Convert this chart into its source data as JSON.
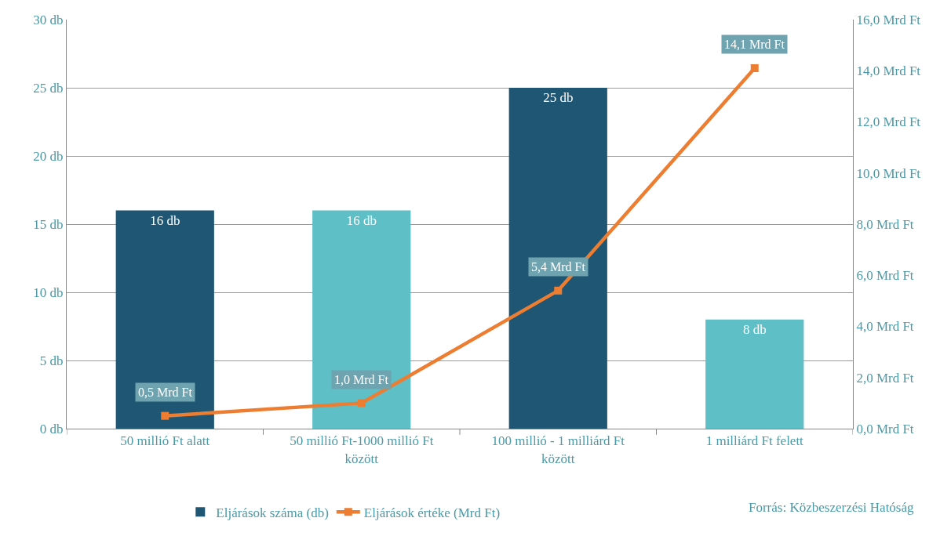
{
  "chart_data": {
    "type": "bar",
    "categories": [
      "50 millió Ft alatt",
      "50 millió Ft-1000 millió Ft között",
      "100 millió - 1 milliárd Ft között",
      "1 milliárd Ft felett"
    ],
    "series": [
      {
        "name": "Eljárások száma (db)",
        "colors": [
          "#1f5673",
          "#5fbfc6",
          "#1f5673",
          "#5fbfc6"
        ],
        "values": [
          16,
          16,
          25,
          8
        ],
        "value_labels": [
          "16 db",
          "16 db",
          "25 db",
          "8 db"
        ]
      },
      {
        "name": "Eljárások értéke (Mrd Ft)",
        "type": "line",
        "axis": "y2",
        "color": "#ed7d31",
        "marker": "square",
        "values": [
          0.5,
          1.0,
          5.4,
          14.1
        ],
        "value_labels": [
          "0,5 Mrd Ft",
          "1,0 Mrd Ft",
          "5,4 Mrd Ft",
          "14,1 Mrd Ft"
        ]
      }
    ],
    "ylim": [
      0,
      30
    ],
    "yticks": [
      {
        "value": 0,
        "label": "0 db"
      },
      {
        "value": 5,
        "label": "5 db"
      },
      {
        "value": 10,
        "label": "10 db"
      },
      {
        "value": 15,
        "label": "15 db"
      },
      {
        "value": 20,
        "label": "20 db"
      },
      {
        "value": 25,
        "label": "25 db"
      },
      {
        "value": 30,
        "label": "30 db"
      }
    ],
    "y2lim": [
      0,
      16
    ],
    "y2ticks": [
      {
        "value": 0,
        "label": "0,0 Mrd Ft"
      },
      {
        "value": 2,
        "label": "2,0 Mrd Ft"
      },
      {
        "value": 4,
        "label": "4,0 Mrd Ft"
      },
      {
        "value": 6,
        "label": "6,0 Mrd Ft"
      },
      {
        "value": 8,
        "label": "8,0 Mrd Ft"
      },
      {
        "value": 10,
        "label": "10,0 Mrd Ft"
      },
      {
        "value": 12,
        "label": "12,0 Mrd Ft"
      },
      {
        "value": 14,
        "label": "14,0 Mrd Ft"
      },
      {
        "value": 16,
        "label": "16,0 Mrd Ft"
      }
    ],
    "grid": "y",
    "legend": "bottom",
    "annotations": [
      "Forrás: Közbeszerzési Hatóság"
    ]
  }
}
